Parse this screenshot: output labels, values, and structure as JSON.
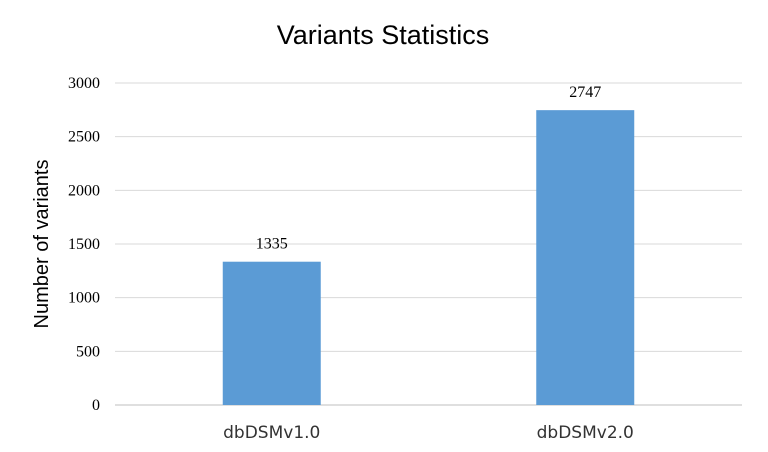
{
  "chart_data": {
    "type": "bar",
    "title": "Variants Statistics",
    "xlabel": "",
    "ylabel": "Number of variants",
    "categories": [
      "dbDSMv1.0",
      "dbDSMv2.0"
    ],
    "values": [
      1335,
      2747
    ],
    "data_labels": [
      "1335",
      "2747"
    ],
    "ylim": [
      0,
      3000
    ],
    "yticks": [
      "0",
      "500",
      "1000",
      "1500",
      "2000",
      "2500",
      "3000"
    ],
    "bar_color": "#5b9bd5",
    "grid": true,
    "legend": "none"
  }
}
